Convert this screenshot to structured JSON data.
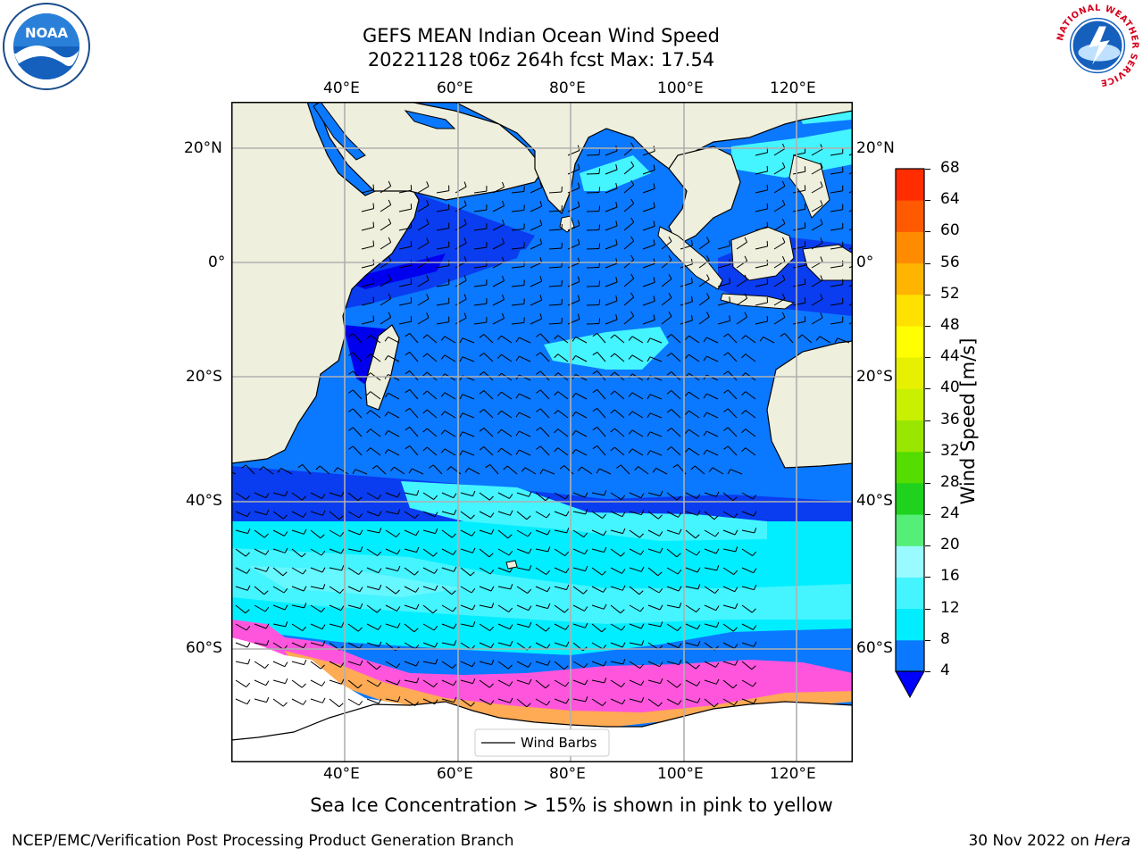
{
  "header": {
    "title_line1": "GEFS MEAN Indian Ocean Wind Speed",
    "title_line2": "20221128 t06z 264h fcst   Max: 17.54"
  },
  "logos": {
    "left": {
      "name": "noaa-logo",
      "text": "NOAA"
    },
    "right": {
      "name": "nws-logo",
      "ring_text": "NATIONAL WEATHER SERVICE"
    }
  },
  "map": {
    "lon_ticks": [
      "40°E",
      "60°E",
      "80°E",
      "100°E",
      "120°E"
    ],
    "lat_ticks": [
      "20°N",
      "0°",
      "20°S",
      "40°S",
      "60°S"
    ],
    "legend_label": "Wind Barbs",
    "colors": {
      "land": "#efefdd",
      "antarctic": "#ffffff",
      "ice_pink": "#ff55dd",
      "ice_orange": "#ffaa55",
      "coast": "#000000",
      "grid": "#b0b0b0"
    }
  },
  "colorbar": {
    "label": "Wind Speed [m/s]",
    "ticks": [
      "4",
      "8",
      "12",
      "16",
      "20",
      "24",
      "28",
      "32",
      "36",
      "40",
      "44",
      "48",
      "52",
      "56",
      "60",
      "64",
      "68"
    ],
    "colors": [
      "#0a78ff",
      "#00eeff",
      "#44f4ff",
      "#99fbff",
      "#55ee77",
      "#1ed21e",
      "#55dd00",
      "#99e600",
      "#c8f000",
      "#e6f000",
      "#ffff00",
      "#ffe100",
      "#ffb400",
      "#ff8c00",
      "#ff5a00",
      "#ff2d00",
      "#ff0000"
    ],
    "underflow_color": "#0000ff"
  },
  "subtitle": "Sea Ice Concentration > 15% is shown in pink to yellow",
  "footer": {
    "left": "NCEP/EMC/Verification Post Processing Product Generation Branch",
    "right_prefix": "30 Nov 2022 on ",
    "right_machine": "Hera"
  }
}
